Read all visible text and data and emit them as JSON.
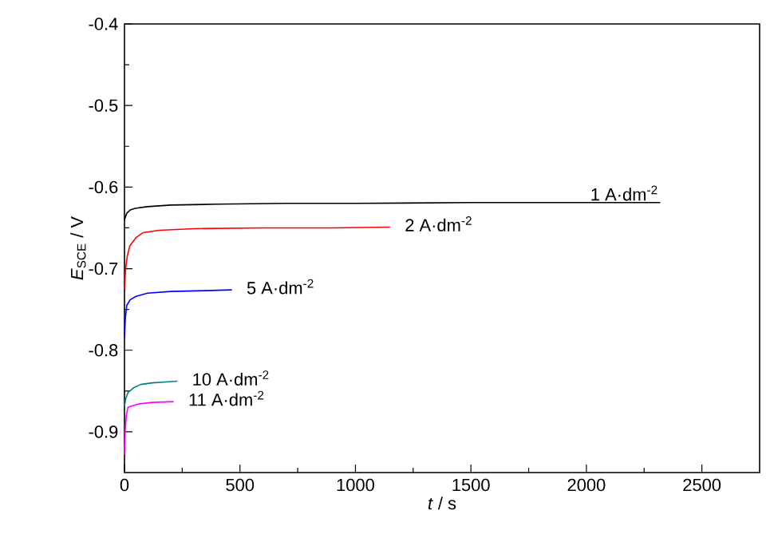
{
  "chart_data": {
    "type": "line",
    "xlabel": "*t* / s",
    "ylabel": "*E*$_{SCE}$ / V",
    "xlim": [
      0,
      2750
    ],
    "ylim": [
      -0.95,
      -0.4
    ],
    "xticks": [
      0,
      500,
      1000,
      1500,
      2000,
      2500
    ],
    "yticks": [
      -0.9,
      -0.8,
      -0.7,
      -0.6,
      -0.5,
      -0.4
    ],
    "grid": false,
    "marker": "none",
    "line_style": "solid",
    "series": [
      {
        "name": "1 A·dm$^{-2}$",
        "color": "#000000",
        "x": [
          0,
          10,
          25,
          46,
          100,
          200,
          400,
          700,
          1000,
          1500,
          2000,
          2320
        ],
        "values": [
          -0.64,
          -0.632,
          -0.628,
          -0.626,
          -0.624,
          -0.622,
          -0.621,
          -0.62,
          -0.62,
          -0.619,
          -0.619,
          -0.619
        ]
      },
      {
        "name": "2 A·dm$^{-2}$",
        "color": "#ff0000",
        "x": [
          0,
          5,
          12,
          23,
          50,
          80,
          150,
          300,
          600,
          900,
          1150
        ],
        "values": [
          -0.725,
          -0.7,
          -0.685,
          -0.672,
          -0.662,
          -0.656,
          -0.653,
          -0.651,
          -0.65,
          -0.65,
          -0.649
        ]
      },
      {
        "name": "5 A·dm$^{-2}$",
        "color": "#0000ff",
        "x": [
          0,
          4,
          10,
          25,
          50,
          100,
          200,
          350,
          465
        ],
        "values": [
          -0.784,
          -0.76,
          -0.745,
          -0.738,
          -0.734,
          -0.73,
          -0.728,
          -0.727,
          -0.726
        ]
      },
      {
        "name": "10 A·dm$^{-2}$",
        "color": "#008080",
        "x": [
          0,
          5,
          15,
          40,
          70,
          120,
          180,
          229
        ],
        "values": [
          -0.869,
          -0.86,
          -0.852,
          -0.846,
          -0.842,
          -0.84,
          -0.839,
          -0.838
        ]
      },
      {
        "name": "11 A·dm$^{-2}$",
        "color": "#ff00ff",
        "x": [
          0,
          3,
          8,
          15,
          35,
          60,
          120,
          213
        ],
        "values": [
          -0.928,
          -0.9,
          -0.88,
          -0.87,
          -0.868,
          -0.866,
          -0.864,
          -0.863
        ]
      }
    ]
  }
}
